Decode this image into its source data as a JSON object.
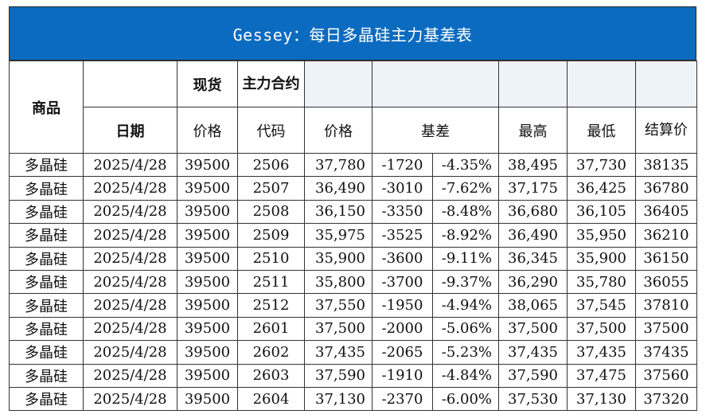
{
  "title": "Gessey：每日多晶硅主力基差表",
  "headers": {
    "commodity": "商品",
    "spot": "现货",
    "main_contract": "主力合约",
    "date": "日期",
    "spot_price": "价格",
    "code": "代码",
    "futures_price": "价格",
    "basis": "基差",
    "high": "最高",
    "low": "最低",
    "settle": "结算价"
  },
  "rows": [
    {
      "commodity": "多晶硅",
      "date": "2025/4/28",
      "spot": "39500",
      "code": "2506",
      "price": "37,780",
      "basis": "-1720",
      "basis_pct": "-4.35%",
      "high": "38,495",
      "low": "37,730",
      "settle": "38135"
    },
    {
      "commodity": "多晶硅",
      "date": "2025/4/28",
      "spot": "39500",
      "code": "2507",
      "price": "36,490",
      "basis": "-3010",
      "basis_pct": "-7.62%",
      "high": "37,175",
      "low": "36,425",
      "settle": "36780"
    },
    {
      "commodity": "多晶硅",
      "date": "2025/4/28",
      "spot": "39500",
      "code": "2508",
      "price": "36,150",
      "basis": "-3350",
      "basis_pct": "-8.48%",
      "high": "36,680",
      "low": "36,105",
      "settle": "36405"
    },
    {
      "commodity": "多晶硅",
      "date": "2025/4/28",
      "spot": "39500",
      "code": "2509",
      "price": "35,975",
      "basis": "-3525",
      "basis_pct": "-8.92%",
      "high": "36,490",
      "low": "35,950",
      "settle": "36210"
    },
    {
      "commodity": "多晶硅",
      "date": "2025/4/28",
      "spot": "39500",
      "code": "2510",
      "price": "35,900",
      "basis": "-3600",
      "basis_pct": "-9.11%",
      "high": "36,345",
      "low": "35,900",
      "settle": "36150"
    },
    {
      "commodity": "多晶硅",
      "date": "2025/4/28",
      "spot": "39500",
      "code": "2511",
      "price": "35,800",
      "basis": "-3700",
      "basis_pct": "-9.37%",
      "high": "36,290",
      "low": "35,780",
      "settle": "36055"
    },
    {
      "commodity": "多晶硅",
      "date": "2025/4/28",
      "spot": "39500",
      "code": "2512",
      "price": "37,550",
      "basis": "-1950",
      "basis_pct": "-4.94%",
      "high": "38,065",
      "low": "37,545",
      "settle": "37810"
    },
    {
      "commodity": "多晶硅",
      "date": "2025/4/28",
      "spot": "39500",
      "code": "2601",
      "price": "37,500",
      "basis": "-2000",
      "basis_pct": "-5.06%",
      "high": "37,500",
      "low": "37,500",
      "settle": "37500"
    },
    {
      "commodity": "多晶硅",
      "date": "2025/4/28",
      "spot": "39500",
      "code": "2602",
      "price": "37,435",
      "basis": "-2065",
      "basis_pct": "-5.23%",
      "high": "37,435",
      "low": "37,435",
      "settle": "37435"
    },
    {
      "commodity": "多晶硅",
      "date": "2025/4/28",
      "spot": "39500",
      "code": "2603",
      "price": "37,590",
      "basis": "-1910",
      "basis_pct": "-4.84%",
      "high": "37,590",
      "low": "37,475",
      "settle": "37560"
    },
    {
      "commodity": "多晶硅",
      "date": "2025/4/28",
      "spot": "39500",
      "code": "2604",
      "price": "37,130",
      "basis": "-2370",
      "basis_pct": "-6.00%",
      "high": "37,530",
      "low": "37,130",
      "settle": "37320"
    }
  ],
  "colors": {
    "title_bg": "#0b6bc0",
    "commodity_text": "#1a3fb5",
    "date_text": "#2b55c4",
    "negative_text": "#e01a1a"
  },
  "watermark": {
    "top": "",
    "main": "",
    "sub": ""
  }
}
